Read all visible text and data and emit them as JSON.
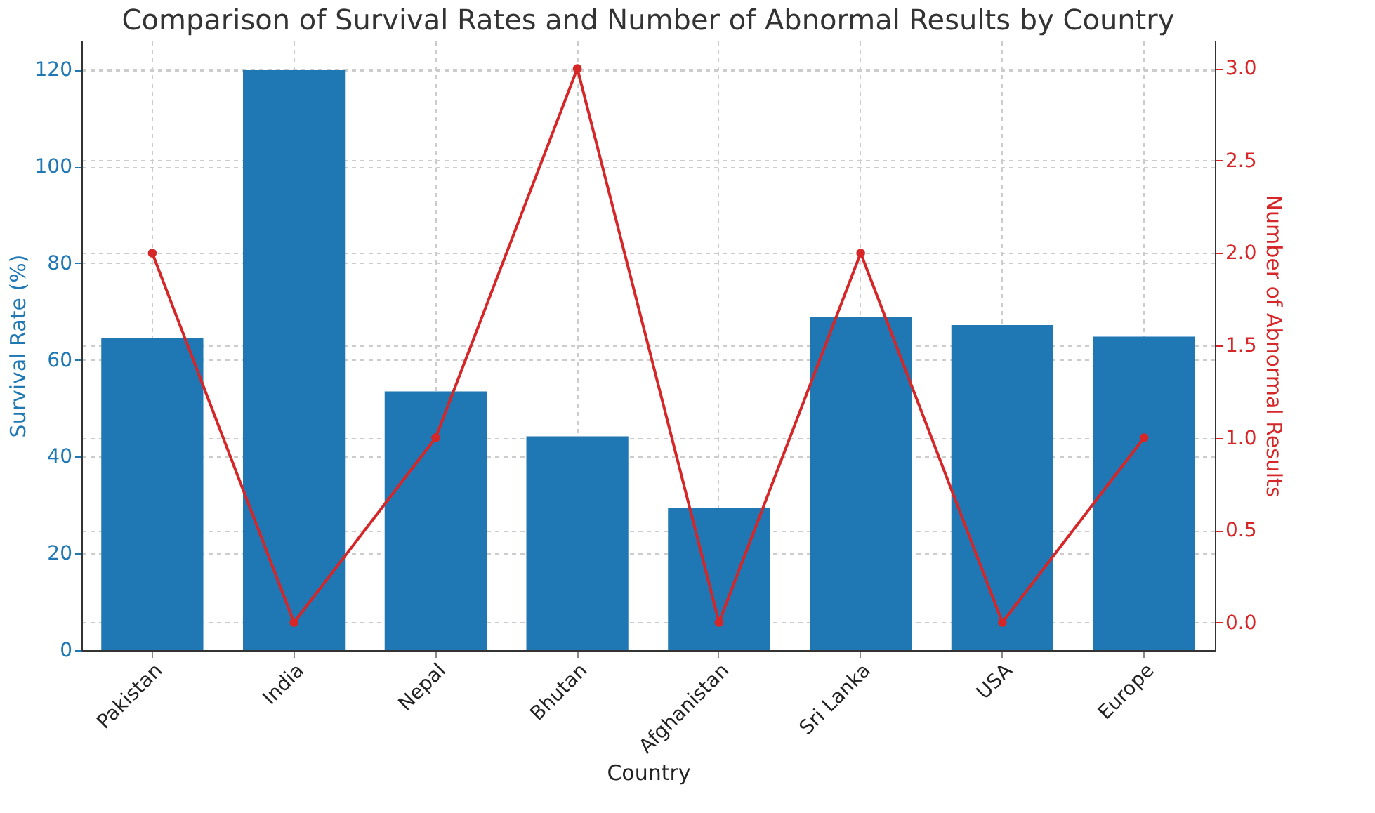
{
  "chart_data": {
    "type": "bar",
    "title": "Comparison of Survival Rates and Number of Abnormal Results by Country",
    "xlabel": "Country",
    "ylabel": "Survival Rate (%)",
    "y2label": "Number of Abnormal Results",
    "categories": [
      "Pakistan",
      "India",
      "Nepal",
      "Bhutan",
      "Afghanistan",
      "Sri Lanka",
      "USA",
      "Europe"
    ],
    "series": [
      {
        "color": "#1f77b4",
        "values": [
          64.5,
          120,
          53.5,
          44.2,
          29.4,
          68.9,
          67.2,
          64.8
        ]
      },
      {
        "type": "line",
        "axis": "y2",
        "color": "#d62728",
        "marker": "circle",
        "values": [
          2,
          0,
          1,
          3,
          0,
          2,
          0,
          1
        ]
      }
    ],
    "ylim": [
      0,
      126
    ],
    "yticks": [
      0,
      20,
      40,
      60,
      80,
      100,
      120
    ],
    "y2lim": [
      -0.15,
      3.15
    ],
    "y2ticks": [
      {
        "value": 0,
        "label": "0.0"
      },
      {
        "value": 0.5,
        "label": "0.5"
      },
      {
        "value": 1,
        "label": "1.0"
      },
      {
        "value": 1.5,
        "label": "1.5"
      },
      {
        "value": 2,
        "label": "2.0"
      },
      {
        "value": 2.5,
        "label": "2.5"
      },
      {
        "value": 3,
        "label": "3.0"
      }
    ],
    "grid": true
  }
}
